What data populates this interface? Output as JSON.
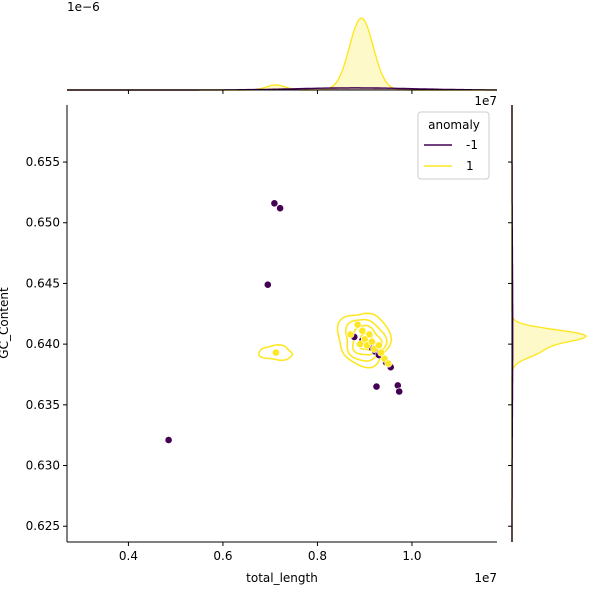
{
  "chart_data": {
    "type": "scatter",
    "kind": "jointplot",
    "xlabel": "total_length",
    "ylabel": "GC_Content",
    "x_offset_label": "1e7",
    "y_offset_label": "",
    "marg_x_offset_label": "1e7",
    "marg_top_offset_label": "1e−6",
    "xlim": [
      0.27,
      1.18
    ],
    "ylim": [
      0.6237,
      0.6597
    ],
    "xticks": [
      0.4,
      0.6,
      0.8,
      1.0
    ],
    "xtick_labels": [
      "0.4",
      "0.6",
      "0.8",
      "1.0"
    ],
    "yticks": [
      0.625,
      0.63,
      0.635,
      0.64,
      0.645,
      0.65,
      0.655
    ],
    "ytick_labels": [
      "0.625",
      "0.630",
      "0.635",
      "0.640",
      "0.645",
      "0.650",
      "0.655"
    ],
    "grid": false,
    "legend": {
      "title": "anomaly",
      "placement": "top-right",
      "entries": [
        {
          "label": "-1",
          "color": "#440154"
        },
        {
          "label": "1",
          "color": "#fde725"
        }
      ]
    },
    "series": [
      {
        "name": "-1",
        "color": "#440154",
        "points": [
          [
            0.709,
            0.6516
          ],
          [
            0.721,
            0.6512
          ],
          [
            0.695,
            0.6449
          ],
          [
            0.485,
            0.6321
          ],
          [
            0.878,
            0.6406
          ],
          [
            0.895,
            0.6403
          ],
          [
            0.915,
            0.6397
          ],
          [
            0.922,
            0.6394
          ],
          [
            0.93,
            0.6391
          ],
          [
            0.945,
            0.6385
          ],
          [
            0.955,
            0.6381
          ],
          [
            0.925,
            0.6365
          ],
          [
            0.97,
            0.6366
          ],
          [
            0.973,
            0.6361
          ]
        ]
      },
      {
        "name": "1",
        "color": "#fde725",
        "points": [
          [
            0.712,
            0.6393
          ],
          [
            0.885,
            0.6416
          ],
          [
            0.87,
            0.6408
          ],
          [
            0.895,
            0.6411
          ],
          [
            0.9,
            0.6404
          ],
          [
            0.905,
            0.6399
          ],
          [
            0.91,
            0.6408
          ],
          [
            0.915,
            0.6402
          ],
          [
            0.92,
            0.6396
          ],
          [
            0.93,
            0.6399
          ],
          [
            0.935,
            0.6393
          ],
          [
            0.942,
            0.6388
          ],
          [
            0.95,
            0.6384
          ],
          [
            0.89,
            0.64
          ]
        ]
      }
    ],
    "kde_contours": {
      "series": "1",
      "color": "#fde725",
      "levels": [
        {
          "cx": 0.898,
          "cy": 0.6405,
          "rx": 0.055,
          "ry": 0.0022
        },
        {
          "cx": 0.9,
          "cy": 0.6404,
          "rx": 0.042,
          "ry": 0.0017
        },
        {
          "cx": 0.903,
          "cy": 0.6403,
          "rx": 0.03,
          "ry": 0.0012
        },
        {
          "cx": 0.905,
          "cy": 0.6402,
          "rx": 0.017,
          "ry": 0.0007
        },
        {
          "cx": 0.712,
          "cy": 0.6393,
          "rx": 0.035,
          "ry": 0.0006
        }
      ]
    },
    "marginal_x": {
      "series": [
        {
          "name": "1",
          "color": "#fde725",
          "peaks": [
            {
              "mu": 0.893,
              "sigma": 0.025,
              "h": 1.0
            },
            {
              "mu": 0.712,
              "sigma": 0.02,
              "h": 0.07
            }
          ]
        },
        {
          "name": "-1",
          "color": "#440154",
          "peaks": [
            {
              "mu": 0.88,
              "sigma": 0.12,
              "h": 0.03
            }
          ]
        }
      ]
    },
    "marginal_y": {
      "series": [
        {
          "name": "1",
          "color": "#fde725",
          "peaks": [
            {
              "mu": 0.6407,
              "sigma": 0.0005,
              "h": 1.0
            },
            {
              "mu": 0.6395,
              "sigma": 0.0006,
              "h": 0.4
            }
          ]
        },
        {
          "name": "-1",
          "color": "#440154",
          "peaks": [
            {
              "mu": 0.641,
              "sigma": 0.006,
              "h": 0.01
            }
          ]
        }
      ]
    }
  }
}
